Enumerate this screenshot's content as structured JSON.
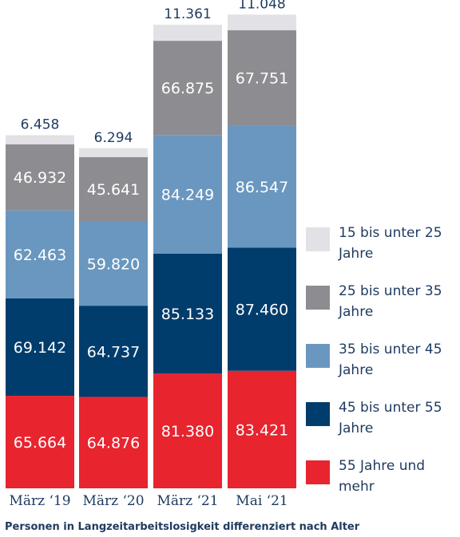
{
  "chart_data": {
    "type": "bar",
    "stacked": true,
    "categories": [
      "März ‘19",
      "März ‘20",
      "März ‘21",
      "Mai ‘21"
    ],
    "series": [
      {
        "name": "55 Jahre und mehr",
        "color": "#e8242f",
        "values": [
          65664,
          64876,
          81380,
          83421
        ],
        "labels": [
          "65.664",
          "64.876",
          "81.380",
          "83.421"
        ]
      },
      {
        "name": "45 bis unter 55 Jahre",
        "color": "#003d6c",
        "values": [
          69142,
          64737,
          85133,
          87460
        ],
        "labels": [
          "69.142",
          "64.737",
          "85.133",
          "87.460"
        ]
      },
      {
        "name": "35 bis unter 45 Jahre",
        "color": "#6a97bf",
        "values": [
          62463,
          59820,
          84249,
          86547
        ],
        "labels": [
          "62.463",
          "59.820",
          "84.249",
          "86.547"
        ]
      },
      {
        "name": "25 bis unter 35 Jahre",
        "color": "#8d8d91",
        "values": [
          46932,
          45641,
          66875,
          67751
        ],
        "labels": [
          "46.932",
          "45.641",
          "66.875",
          "67.751"
        ]
      },
      {
        "name": "15 bis unter 25 Jahre",
        "color": "#e2e2e6",
        "values": [
          6458,
          6294,
          11361,
          11048
        ],
        "labels": [
          "6.458",
          "6.294",
          "11.361",
          "11.048"
        ]
      }
    ],
    "legend": {
      "position": "right",
      "entries": [
        {
          "lines": [
            "15 bis unter 25",
            "Jahre"
          ],
          "color": "#e2e2e6"
        },
        {
          "lines": [
            "25 bis unter 35",
            "Jahre"
          ],
          "color": "#8d8d91"
        },
        {
          "lines": [
            "35 bis unter 45",
            "Jahre"
          ],
          "color": "#6a97bf"
        },
        {
          "lines": [
            "45 bis unter 55",
            "Jahre"
          ],
          "color": "#003d6c"
        },
        {
          "lines": [
            "55 Jahre und",
            "mehr"
          ],
          "color": "#e8242f"
        }
      ]
    },
    "ylim": [
      0,
      330000
    ],
    "grid": false,
    "caption": "Personen in Langzeitarbeitslosigkeit differenziert nach Alter"
  }
}
